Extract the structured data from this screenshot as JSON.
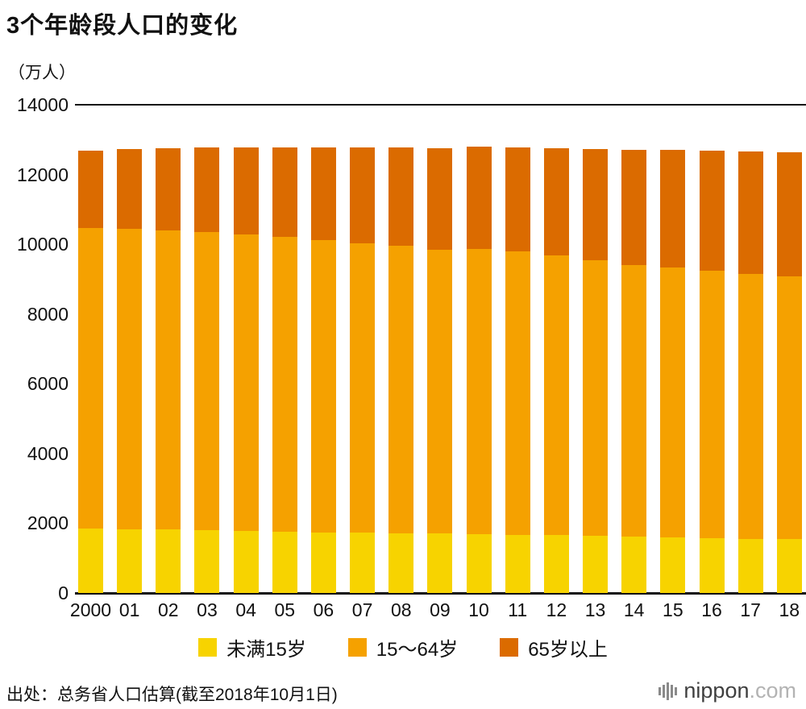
{
  "footer": {
    "source": "出处：总务省人口估算(截至2018年10月1日)",
    "logo_text": "nippon",
    "logo_suffix": ".com",
    "logo_icon": "signal-bars-icon"
  },
  "chart_data": {
    "type": "bar",
    "stacked": true,
    "title": "3个年龄段人口的变化",
    "unit_label": "（万人）",
    "xlabel": "",
    "ylabel": "万人",
    "ylim": [
      0,
      14000
    ],
    "yticks": [
      0,
      2000,
      4000,
      6000,
      8000,
      10000,
      12000,
      14000
    ],
    "grid": false,
    "legend_position": "bottom",
    "categories": [
      "2000",
      "01",
      "02",
      "03",
      "04",
      "05",
      "06",
      "07",
      "08",
      "09",
      "10",
      "11",
      "12",
      "13",
      "14",
      "15",
      "16",
      "17",
      "18"
    ],
    "series": [
      {
        "name": "未满15岁",
        "color": "#F7D300",
        "values": [
          1847,
          1834,
          1817,
          1800,
          1781,
          1759,
          1743,
          1729,
          1718,
          1701,
          1684,
          1670,
          1655,
          1639,
          1623,
          1595,
          1578,
          1559,
          1542
        ]
      },
      {
        "name": "15～64岁",
        "color": "#F5A100",
        "values": [
          8622,
          8614,
          8571,
          8552,
          8509,
          8442,
          8373,
          8301,
          8230,
          8149,
          8174,
          8134,
          8018,
          7901,
          7785,
          7728,
          7656,
          7596,
          7545
        ]
      },
      {
        "name": "65岁以上",
        "color": "#DB6B00",
        "values": [
          2204,
          2287,
          2363,
          2431,
          2488,
          2576,
          2660,
          2746,
          2822,
          2901,
          2948,
          2975,
          3079,
          3190,
          3300,
          3387,
          3459,
          3515,
          3558
        ]
      }
    ]
  }
}
